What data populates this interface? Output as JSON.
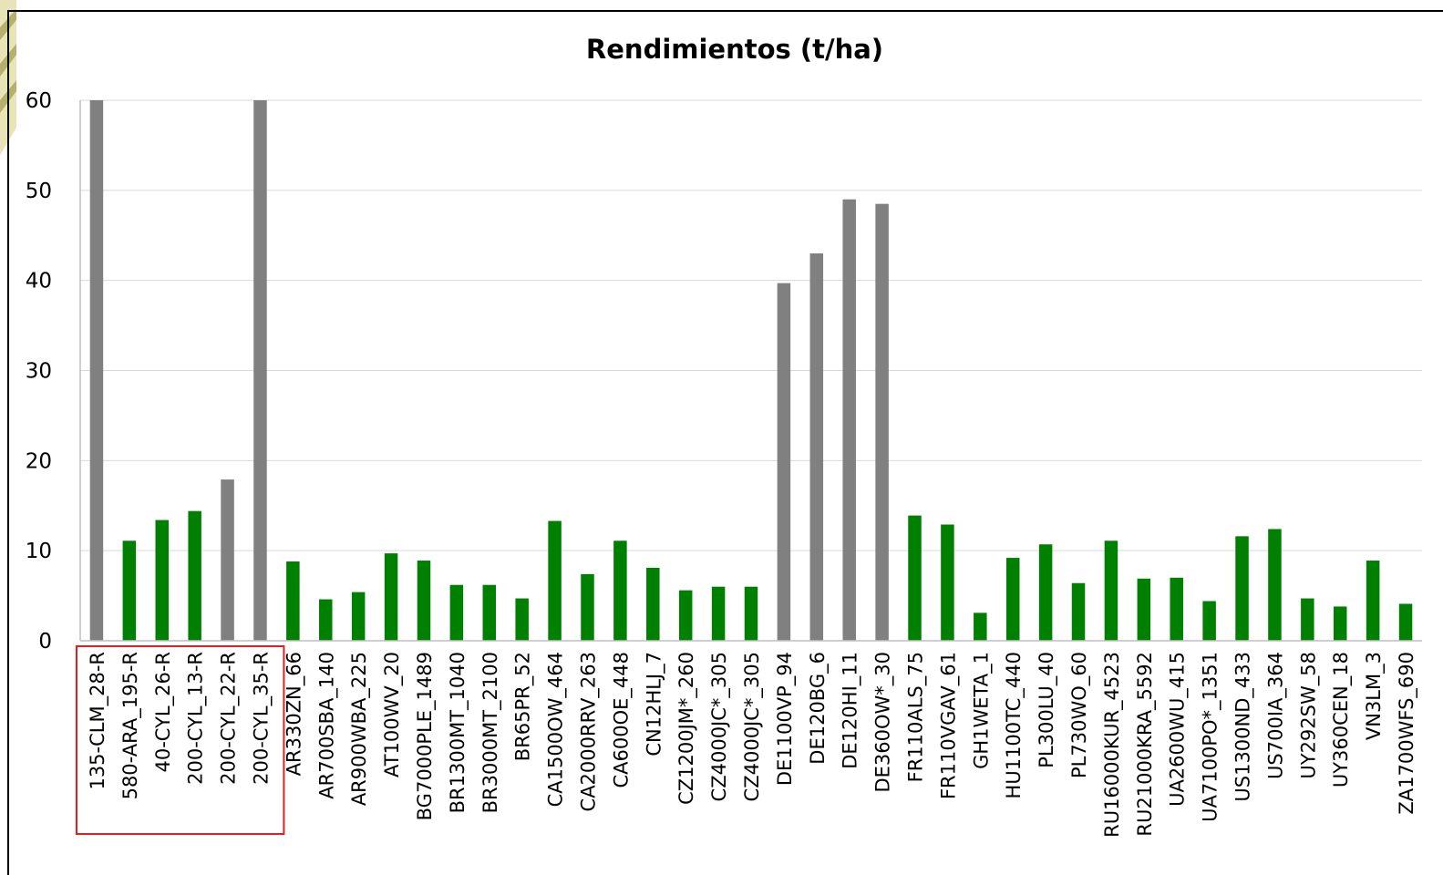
{
  "chart_data": {
    "type": "bar",
    "title": "Rendimientos (t/ha)",
    "xlabel": "",
    "ylabel": "",
    "ylim": [
      0,
      60
    ],
    "yticks": [
      0,
      10,
      20,
      30,
      40,
      50,
      60
    ],
    "grid": true,
    "legend": "none",
    "colors": {
      "gray": "#808080",
      "green": "#008000",
      "highlight_box": "#e02020"
    },
    "highlight": {
      "from_index": 0,
      "to_index": 5
    },
    "categories": [
      "135-CLM_28-R",
      "580-ARA_195-R",
      "40-CYL_26-R",
      "200-CYL_13-R",
      "200-CYL_22-R",
      "200-CYL_35-R",
      "AR330ZN_66",
      "AR700SBA_140",
      "AR900WBA_225",
      "AT100WV_20",
      "BG7000PLE_1489",
      "BR1300MT_1040",
      "BR3000MT_2100",
      "BR65PR_52",
      "CA1500OW_464",
      "CA2000RRV_263",
      "CA600OE_448",
      "CN12HLJ_7",
      "CZ1200JM*_260",
      "CZ4000JC*_305",
      "CZ4000JC*_305",
      "DE1100VP_94",
      "DE120BG_6",
      "DE120HI_11",
      "DE360OW*_30",
      "FR110ALS_75",
      "FR110VGAV_61",
      "GH1WETA_1",
      "HU1100TC_440",
      "PL300LU_40",
      "PL730WO_60",
      "RU16000KUR_4523",
      "RU21000KRA_5592",
      "UA2600WU_415",
      "UA7100PO*_1351",
      "US1300ND_433",
      "US700IA_364",
      "UY292SW_58",
      "UY360CEN_18",
      "VN3LM_3",
      "ZA1700WFS_690"
    ],
    "values": [
      60,
      11.1,
      13.4,
      14.4,
      17.9,
      60,
      8.8,
      4.6,
      5.4,
      9.7,
      8.9,
      6.2,
      6.2,
      4.7,
      13.3,
      7.4,
      11.1,
      8.1,
      5.6,
      6.0,
      6.0,
      39.7,
      43.0,
      49.0,
      48.5,
      13.9,
      12.9,
      3.1,
      9.2,
      10.7,
      6.4,
      11.1,
      6.9,
      7.0,
      4.4,
      11.6,
      12.4,
      4.7,
      3.8,
      8.9,
      4.1
    ],
    "bar_colors": [
      "gray",
      "green",
      "green",
      "green",
      "gray",
      "gray",
      "green",
      "green",
      "green",
      "green",
      "green",
      "green",
      "green",
      "green",
      "green",
      "green",
      "green",
      "green",
      "green",
      "green",
      "green",
      "gray",
      "gray",
      "gray",
      "gray",
      "green",
      "green",
      "green",
      "green",
      "green",
      "green",
      "green",
      "green",
      "green",
      "green",
      "green",
      "green",
      "green",
      "green",
      "green",
      "green"
    ]
  }
}
